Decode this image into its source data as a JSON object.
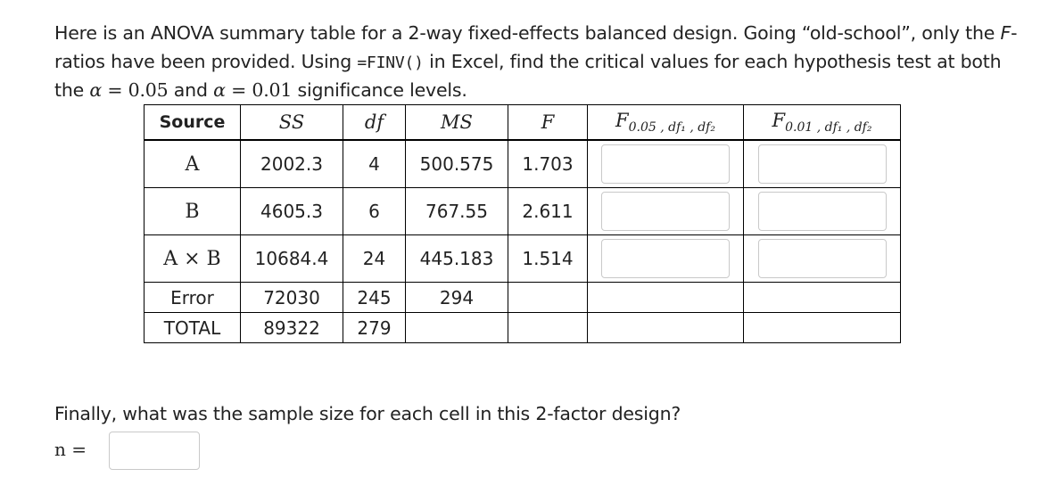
{
  "intro": {
    "text1": "Here is an ANOVA summary table for a 2-way fixed-effects balanced design.  Going “old-school”, only the ",
    "fratio_em": "F",
    "text2": "-ratios have been provided.  Using ",
    "code": "=FINV()",
    "text3": " in Excel, find the critical values for each hypothesis test at both the ",
    "alpha": "α",
    "eq1": " = 0.05",
    "and": " and ",
    "eq2": " = 0.01",
    "text4": " significance levels."
  },
  "table": {
    "headers": {
      "source": "Source",
      "ss": "SS",
      "df": "df",
      "ms": "MS",
      "f": "F",
      "f05_main": "F",
      "f05_sub": "0.05 , df₁ , df₂",
      "f01_main": "F",
      "f01_sub": "0.01 , df₁ , df₂"
    },
    "rows": [
      {
        "source": "A",
        "ss": "2002.3",
        "df": "4",
        "ms": "500.575",
        "f": "1.703"
      },
      {
        "source": "B",
        "ss": "4605.3",
        "df": "6",
        "ms": "767.55",
        "f": "2.611"
      },
      {
        "source": "A × B",
        "ss": "10684.4",
        "df": "24",
        "ms": "445.183",
        "f": "1.514"
      },
      {
        "source": "Error",
        "ss": "72030",
        "df": "245",
        "ms": "294",
        "f": ""
      },
      {
        "source": "TOTAL",
        "ss": "89322",
        "df": "279",
        "ms": "",
        "f": ""
      }
    ]
  },
  "finally": "Finally, what was the sample size for each cell in this 2-factor design?",
  "n_label": "n ="
}
